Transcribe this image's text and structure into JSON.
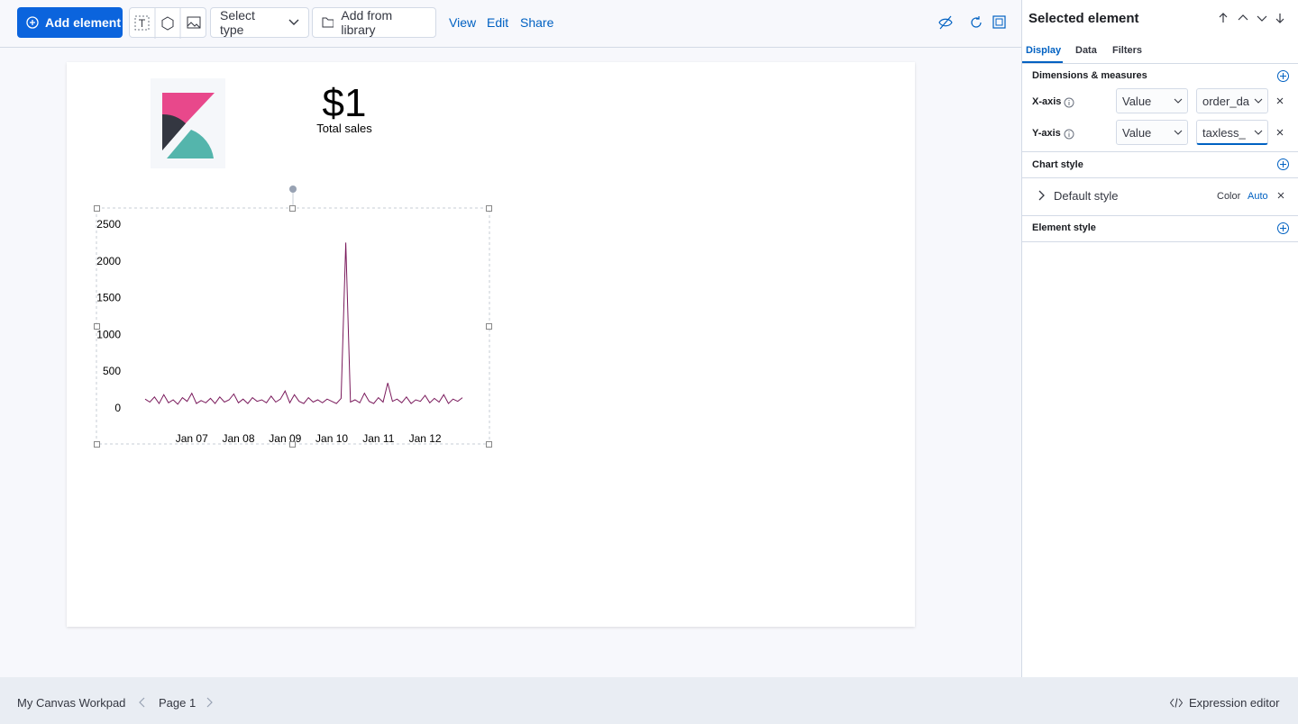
{
  "toolbar": {
    "add_element": "Add element",
    "select_type": "Select type",
    "add_from_library": "Add from library",
    "menu": [
      "View",
      "Edit",
      "Share"
    ]
  },
  "canvas": {
    "metric_value": "$1",
    "metric_label": "Total sales"
  },
  "panel": {
    "title": "Selected element",
    "tabs": [
      "Display",
      "Data",
      "Filters"
    ],
    "dimensions": {
      "title": "Dimensions & measures",
      "x_axis": {
        "label": "X-axis",
        "mode": "Value",
        "field": "order_da"
      },
      "y_axis": {
        "label": "Y-axis",
        "mode": "Value",
        "field": "taxless_"
      }
    },
    "chart_style": {
      "title": "Chart style",
      "default_style": "Default style",
      "color_label": "Color",
      "color_value": "Auto"
    },
    "element_style": {
      "title": "Element style"
    }
  },
  "footer": {
    "workpad": "My Canvas Workpad",
    "page": "Page 1",
    "expression_editor": "Expression editor"
  },
  "chart_data": {
    "type": "line",
    "color": "#7a1a5c",
    "x": [
      6.0,
      6.1,
      6.2,
      6.3,
      6.4,
      6.5,
      6.6,
      6.7,
      6.8,
      6.9,
      7.0,
      7.1,
      7.2,
      7.3,
      7.4,
      7.5,
      7.6,
      7.7,
      7.8,
      7.9,
      8.0,
      8.1,
      8.2,
      8.3,
      8.4,
      8.5,
      8.6,
      8.7,
      8.8,
      8.9,
      9.0,
      9.1,
      9.2,
      9.3,
      9.4,
      9.5,
      9.6,
      9.7,
      9.8,
      9.9,
      10.0,
      10.1,
      10.2,
      10.3,
      10.4,
      10.5,
      10.6,
      10.7,
      10.8,
      10.9,
      11.0,
      11.1,
      11.2,
      11.3,
      11.4,
      11.5,
      11.6,
      11.7,
      11.8,
      11.9,
      12.0,
      12.1,
      12.2,
      12.3,
      12.4,
      12.5,
      12.6,
      12.7,
      12.8
    ],
    "values": [
      120,
      80,
      150,
      60,
      180,
      70,
      110,
      50,
      140,
      90,
      200,
      60,
      100,
      70,
      130,
      60,
      150,
      80,
      110,
      190,
      70,
      120,
      60,
      140,
      90,
      110,
      70,
      160,
      80,
      120,
      230,
      70,
      180,
      90,
      60,
      140,
      80,
      110,
      70,
      120,
      90,
      60,
      130,
      2250,
      80,
      110,
      70,
      200,
      90,
      60,
      140,
      80,
      340,
      90,
      120,
      70,
      150,
      60,
      110,
      90,
      170,
      70,
      130,
      80,
      180,
      60,
      120,
      90,
      140
    ],
    "xlim": [
      6.0,
      12.8
    ],
    "xticks": [
      {
        "value": 7,
        "label": "Jan 07"
      },
      {
        "value": 8,
        "label": "Jan 08"
      },
      {
        "value": 9,
        "label": "Jan 09"
      },
      {
        "value": 10,
        "label": "Jan 10"
      },
      {
        "value": 11,
        "label": "Jan 11"
      },
      {
        "value": 12,
        "label": "Jan 12"
      }
    ],
    "ylim": [
      0,
      2500
    ],
    "yticks": [
      0,
      500,
      1000,
      1500,
      2000,
      2500
    ],
    "grid": false
  }
}
